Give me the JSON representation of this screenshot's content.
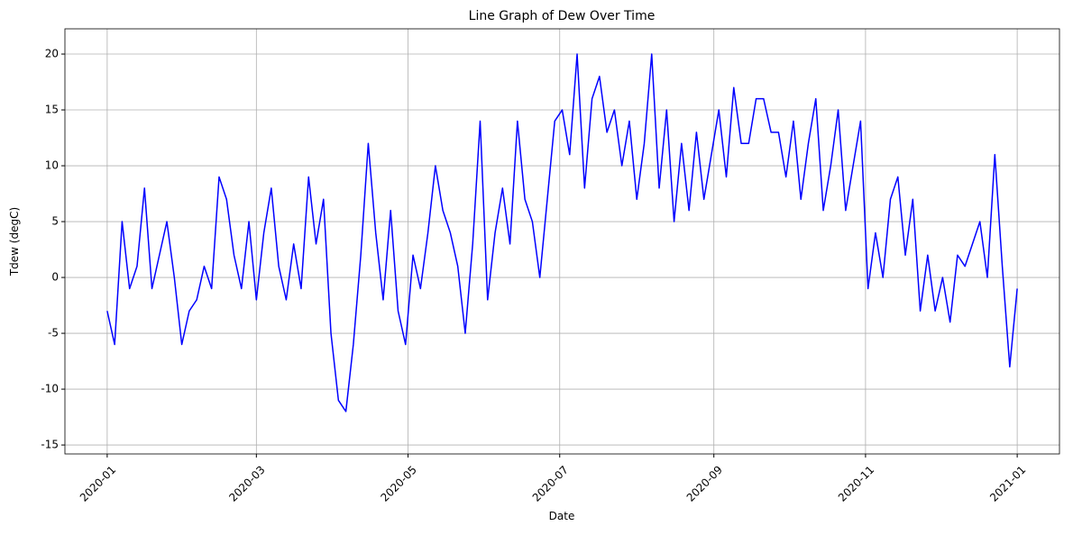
{
  "chart_data": {
    "type": "line",
    "title": "Line Graph of Dew Over Time",
    "x_label": "Date",
    "y_label": "Tdew (degC)",
    "x": [
      0,
      3,
      6,
      9,
      12,
      15,
      18,
      21,
      24,
      27,
      30,
      33,
      36,
      39,
      42,
      45,
      48,
      51,
      54,
      57,
      60,
      63,
      66,
      69,
      72,
      75,
      78,
      81,
      84,
      87,
      90,
      93,
      96,
      99,
      102,
      105,
      108,
      111,
      114,
      117,
      120,
      123,
      126,
      129,
      132,
      135,
      138,
      141,
      144,
      147,
      150,
      153,
      156,
      159,
      162,
      165,
      168,
      171,
      174,
      177,
      180,
      183,
      186,
      189,
      192,
      195,
      198,
      201,
      204,
      207,
      210,
      213,
      216,
      219,
      222,
      225,
      228,
      231,
      234,
      237,
      240,
      243,
      246,
      249,
      252,
      255,
      258,
      261,
      264,
      267,
      270,
      273,
      276,
      279,
      282,
      285,
      288,
      291,
      294,
      297,
      300,
      303,
      306,
      309,
      312,
      315,
      318,
      321,
      324,
      327,
      330,
      333,
      336,
      339,
      342,
      345,
      348,
      351,
      354,
      357,
      360,
      363,
      366
    ],
    "series": [
      {
        "name": "Tdew",
        "color": "#0000ff",
        "values": [
          -3,
          -6,
          5,
          -1,
          1,
          8,
          -1,
          2,
          5,
          0,
          -6,
          -3,
          -2,
          1,
          -1,
          9,
          7,
          2,
          -1,
          5,
          -2,
          4,
          8,
          1,
          -2,
          3,
          -1,
          9,
          3,
          7,
          -5,
          -11,
          -12,
          -6,
          2,
          12,
          4,
          -2,
          6,
          -3,
          -6,
          2,
          -1,
          4,
          10,
          6,
          4,
          1,
          -5,
          3,
          14,
          -2,
          4,
          8,
          3,
          14,
          7,
          5,
          0,
          7,
          14,
          15,
          11,
          20,
          8,
          16,
          18,
          13,
          15,
          10,
          14,
          7,
          12,
          20,
          8,
          15,
          5,
          12,
          6,
          13,
          7,
          11,
          15,
          9,
          17,
          12,
          12,
          16,
          16,
          13,
          13,
          9,
          14,
          7,
          12,
          16,
          6,
          10,
          15,
          6,
          10,
          14,
          -1,
          4,
          0,
          7,
          9,
          2,
          7,
          -3,
          2,
          -3,
          0,
          -4,
          2,
          1,
          3,
          5,
          0,
          11,
          1,
          -8,
          -1
        ]
      }
    ],
    "xlim": [
      -17,
      383
    ],
    "ylim": [
      -15.8,
      22.26
    ],
    "xticks": [
      {
        "value": 0,
        "label": "2020-01"
      },
      {
        "value": 60,
        "label": "2020-03"
      },
      {
        "value": 121,
        "label": "2020-05"
      },
      {
        "value": 182,
        "label": "2020-07"
      },
      {
        "value": 244,
        "label": "2020-09"
      },
      {
        "value": 305,
        "label": "2020-11"
      },
      {
        "value": 366,
        "label": "2021-01"
      }
    ],
    "yticks": [
      -15,
      -10,
      -5,
      0,
      5,
      10,
      15,
      20
    ],
    "grid": true
  }
}
